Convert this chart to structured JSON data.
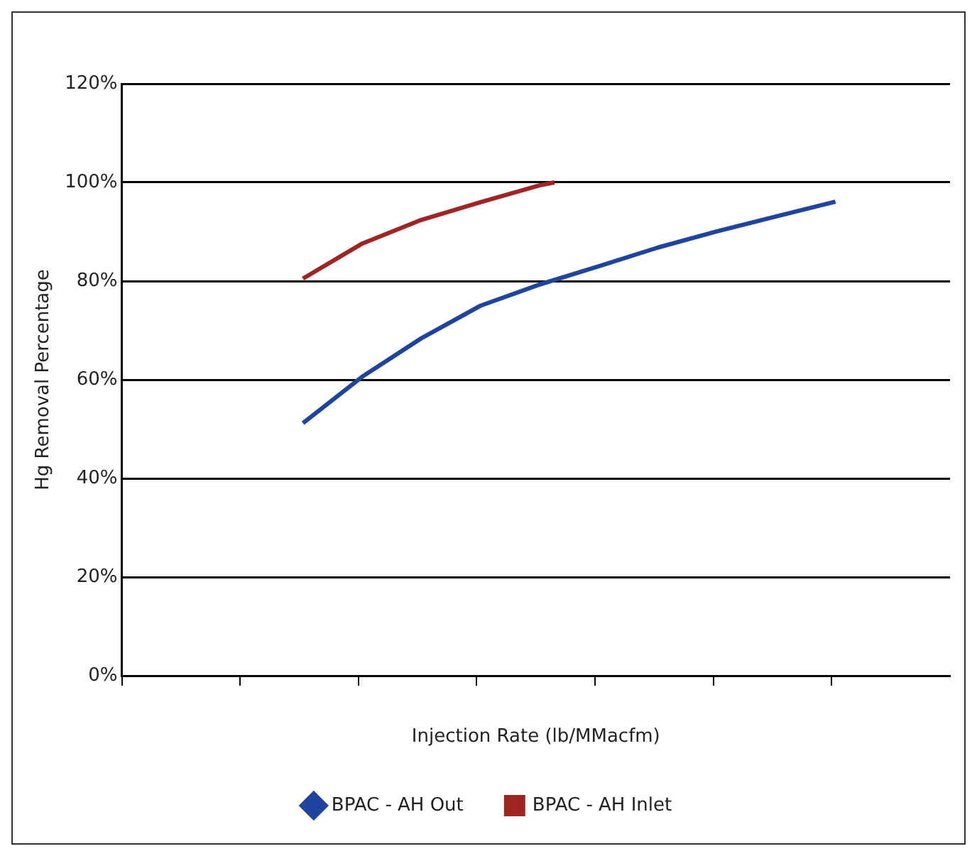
{
  "chart_data": {
    "type": "line",
    "xlabel": "Injection Rate (lb/MMacfm)",
    "ylabel": "Hg Removal Percentage",
    "categories": [
      null,
      null,
      null,
      null,
      null,
      null,
      null,
      null,
      null,
      null,
      null,
      null,
      null,
      null,
      null,
      null,
      null,
      null,
      null,
      null,
      null,
      null,
      null,
      null,
      null,
      null,
      null,
      null,
      null,
      null,
      null,
      null,
      null,
      null,
      null,
      null,
      null,
      null,
      null,
      null,
      null,
      null,
      null,
      null,
      null,
      null,
      null,
      null,
      null,
      null,
      null,
      null,
      null,
      null,
      null,
      null,
      null,
      null,
      null,
      null,
      null,
      null,
      null,
      null,
      null,
      null,
      null,
      null,
      null,
      null,
      null,
      null,
      null,
      null,
      null,
      null,
      null,
      null,
      null,
      null,
      null,
      null,
      null,
      null,
      null,
      null,
      null,
      null,
      null,
      null,
      null,
      null,
      null,
      null,
      null,
      null,
      null,
      null,
      null,
      null,
      null,
      null,
      null,
      null,
      null,
      null,
      null,
      null,
      null,
      null,
      null,
      null
    ],
    "ylim": [
      0,
      120
    ],
    "yticks": [
      {
        "value": 0,
        "label": "0%"
      },
      {
        "value": 20,
        "label": "20%"
      },
      {
        "value": 40,
        "label": "40%"
      },
      {
        "value": 60,
        "label": "60%"
      },
      {
        "value": 80,
        "label": "80%"
      },
      {
        "value": 100,
        "label": "100%"
      },
      {
        "value": 120,
        "label": "120%"
      }
    ],
    "grid": "y",
    "legend": "bottom",
    "marker": "none",
    "line_style": "solid",
    "series": [
      {
        "name": "BPAC - AH Out",
        "color": "#1f44a0",
        "values": [
          null,
          null,
          null,
          null,
          null,
          null,
          null,
          null,
          null,
          null,
          null,
          null,
          null,
          null,
          null,
          null,
          null,
          null,
          null,
          null,
          null,
          null,
          null,
          null,
          51.2,
          null,
          null,
          null,
          null,
          null,
          null,
          null,
          60.6,
          null,
          null,
          null,
          null,
          null,
          null,
          null,
          68.4,
          null,
          null,
          null,
          null,
          null,
          null,
          null,
          75,
          null,
          null,
          null,
          null,
          null,
          null,
          null,
          79.3,
          null,
          null,
          null,
          null,
          null,
          null,
          null,
          83,
          null,
          null,
          null,
          null,
          null,
          null,
          null,
          86.8,
          null,
          null,
          null,
          null,
          null,
          null,
          null,
          90.1,
          null,
          null,
          null,
          null,
          null,
          null,
          null,
          93.1,
          null,
          null,
          null,
          null,
          null,
          null,
          null,
          96.1,
          null,
          null,
          null,
          null,
          null,
          null,
          null,
          null,
          null,
          null,
          null,
          null,
          null,
          null,
          null
        ]
      },
      {
        "name": "BPAC - AH Inlet",
        "color": "#a02424",
        "values": [
          null,
          null,
          null,
          null,
          null,
          null,
          null,
          null,
          null,
          null,
          null,
          null,
          null,
          null,
          null,
          null,
          null,
          null,
          null,
          null,
          null,
          null,
          null,
          null,
          80.5,
          null,
          null,
          null,
          null,
          null,
          null,
          null,
          87.6,
          null,
          null,
          null,
          null,
          null,
          null,
          null,
          92.4,
          null,
          null,
          null,
          null,
          null,
          null,
          null,
          96,
          null,
          null,
          null,
          null,
          null,
          null,
          null,
          99.4,
          null,
          100,
          null,
          null,
          null,
          null,
          null,
          null,
          null,
          null,
          null,
          null,
          null,
          null,
          null,
          null,
          null,
          null,
          null,
          null,
          null,
          null,
          null,
          null,
          null,
          null,
          null,
          null,
          null,
          null,
          null,
          null,
          null,
          null,
          null,
          null,
          null,
          null,
          null,
          null,
          null,
          null,
          null,
          null,
          null,
          null,
          null,
          null,
          null,
          null,
          null,
          null,
          null,
          null,
          null
        ]
      }
    ]
  }
}
